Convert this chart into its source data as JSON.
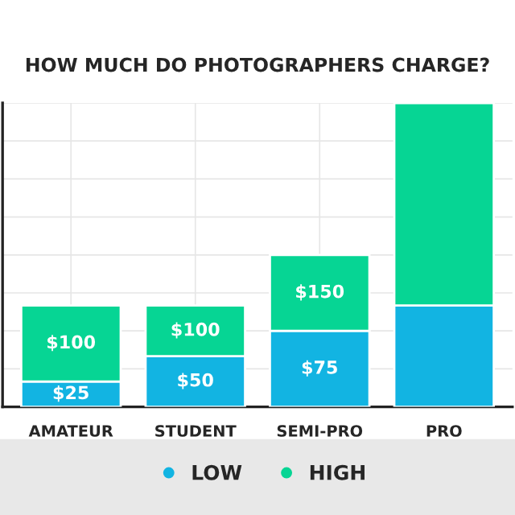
{
  "chart_data": {
    "type": "bar",
    "title": "HOW MUCH DO PHOTOGRAPHERS CHARGE?",
    "categories": [
      "AMATEUR",
      "STUDENT",
      "SEMI-PRO",
      "PRO"
    ],
    "stacked": true,
    "totals": [
      "$100",
      "$100",
      "$150",
      null
    ],
    "series": [
      {
        "name": "LOW",
        "color": "#12b4e2",
        "values": [
          25,
          50,
          75,
          100
        ],
        "value_labels": [
          "$25",
          "$50",
          "$75",
          null
        ]
      },
      {
        "name": "HIGH",
        "color": "#06d594",
        "values": [
          75,
          50,
          75,
          200
        ]
      }
    ],
    "ylim": [
      0,
      300
    ],
    "yticks": [
      {
        "value": 0,
        "label": null
      },
      {
        "value": 37.5,
        "label": null
      },
      {
        "value": 75,
        "label": null
      },
      {
        "value": 112.5,
        "label": null
      },
      {
        "value": 150,
        "label": null
      },
      {
        "value": 187.5,
        "label": null
      },
      {
        "value": 225,
        "label": null
      },
      {
        "value": 262.5,
        "label": null
      },
      {
        "value": 300,
        "label": null
      }
    ],
    "tick_labels": "x",
    "grid": true,
    "legend": "bottom"
  }
}
